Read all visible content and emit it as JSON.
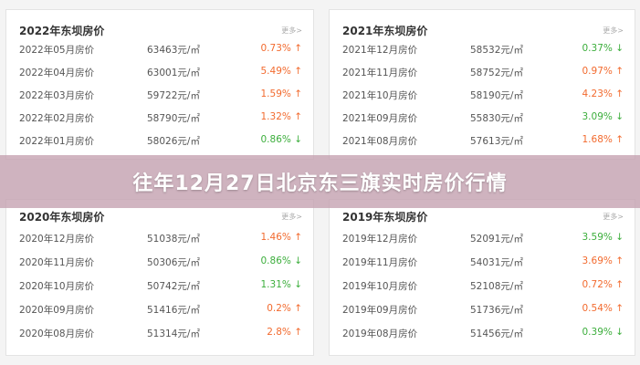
{
  "banner": {
    "title": "往年12月27日北京东三旗实时房价行情"
  },
  "panels": [
    {
      "title": "2022年东坝房价",
      "more": "更多>",
      "rows": [
        {
          "month": "2022年05月房价",
          "price": "63463元/㎡",
          "change": "0.73% ↑",
          "dir": "up"
        },
        {
          "month": "2022年04月房价",
          "price": "63001元/㎡",
          "change": "5.49% ↑",
          "dir": "up"
        },
        {
          "month": "2022年03月房价",
          "price": "59722元/㎡",
          "change": "1.59% ↑",
          "dir": "up"
        },
        {
          "month": "2022年02月房价",
          "price": "58790元/㎡",
          "change": "1.32% ↑",
          "dir": "up"
        },
        {
          "month": "2022年01月房价",
          "price": "58026元/㎡",
          "change": "0.86% ↓",
          "dir": "down"
        }
      ]
    },
    {
      "title": "2021年东坝房价",
      "more": "更多>",
      "rows": [
        {
          "month": "2021年12月房价",
          "price": "58532元/㎡",
          "change": "0.37% ↓",
          "dir": "down"
        },
        {
          "month": "2021年11月房价",
          "price": "58752元/㎡",
          "change": "0.97% ↑",
          "dir": "up"
        },
        {
          "month": "2021年10月房价",
          "price": "58190元/㎡",
          "change": "4.23% ↑",
          "dir": "up"
        },
        {
          "month": "2021年09月房价",
          "price": "55830元/㎡",
          "change": "3.09% ↓",
          "dir": "down"
        },
        {
          "month": "2021年08月房价",
          "price": "57613元/㎡",
          "change": "1.68% ↑",
          "dir": "up"
        }
      ]
    },
    {
      "title": "2020年东坝房价",
      "more": "更多>",
      "rows": [
        {
          "month": "2020年12月房价",
          "price": "51038元/㎡",
          "change": "1.46% ↑",
          "dir": "up"
        },
        {
          "month": "2020年11月房价",
          "price": "50306元/㎡",
          "change": "0.86% ↓",
          "dir": "down"
        },
        {
          "month": "2020年10月房价",
          "price": "50742元/㎡",
          "change": "1.31% ↓",
          "dir": "down"
        },
        {
          "month": "2020年09月房价",
          "price": "51416元/㎡",
          "change": "0.2% ↑",
          "dir": "up"
        },
        {
          "month": "2020年08月房价",
          "price": "51314元/㎡",
          "change": "2.8% ↑",
          "dir": "up"
        }
      ]
    },
    {
      "title": "2019年东坝房价",
      "more": "更多>",
      "rows": [
        {
          "month": "2019年12月房价",
          "price": "52091元/㎡",
          "change": "3.59% ↓",
          "dir": "down"
        },
        {
          "month": "2019年11月房价",
          "price": "54031元/㎡",
          "change": "3.69% ↑",
          "dir": "up"
        },
        {
          "month": "2019年10月房价",
          "price": "52108元/㎡",
          "change": "0.72% ↑",
          "dir": "up"
        },
        {
          "month": "2019年09月房价",
          "price": "51736元/㎡",
          "change": "0.54% ↑",
          "dir": "up"
        },
        {
          "month": "2019年08月房价",
          "price": "51456元/㎡",
          "change": "0.39% ↓",
          "dir": "down"
        }
      ]
    }
  ]
}
